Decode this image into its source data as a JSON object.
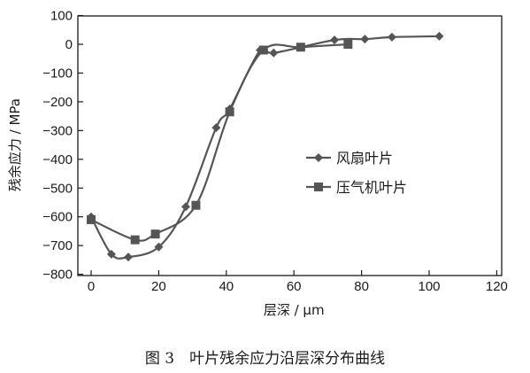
{
  "caption": "图 3　叶片残余应力沿层深分布曲线",
  "chart_data": {
    "type": "line",
    "xlabel": "层深 / μm",
    "ylabel": "残余应力 / MPa",
    "xlim": [
      -5,
      120
    ],
    "ylim": [
      -800,
      100
    ],
    "xticks": [
      0,
      20,
      40,
      60,
      80,
      100,
      120
    ],
    "yticks": [
      100,
      0,
      -100,
      -200,
      -300,
      -400,
      -500,
      -600,
      -700,
      -800
    ],
    "xtick_labels": [
      "0",
      "20",
      "40",
      "60",
      "80",
      "100",
      "120"
    ],
    "ytick_labels": [
      "100",
      "0",
      "−100",
      "−200",
      "−300",
      "−400",
      "−500",
      "−600",
      "−700",
      "−800"
    ],
    "grid": false,
    "legend_position": "center-right",
    "series": [
      {
        "name": "风扇叶片",
        "marker": "diamond",
        "color": "#555555",
        "x": [
          0,
          6,
          11,
          20,
          28,
          37,
          41,
          50,
          54,
          72,
          81,
          89,
          103
        ],
        "y": [
          -600,
          -730,
          -740,
          -705,
          -565,
          -290,
          -225,
          -20,
          -30,
          15,
          18,
          25,
          28
        ]
      },
      {
        "name": "压气机叶片",
        "marker": "square",
        "color": "#555555",
        "x": [
          0,
          13,
          19,
          31,
          41,
          51,
          62,
          76
        ],
        "y": [
          -610,
          -680,
          -660,
          -560,
          -235,
          -20,
          -10,
          0
        ]
      }
    ]
  }
}
